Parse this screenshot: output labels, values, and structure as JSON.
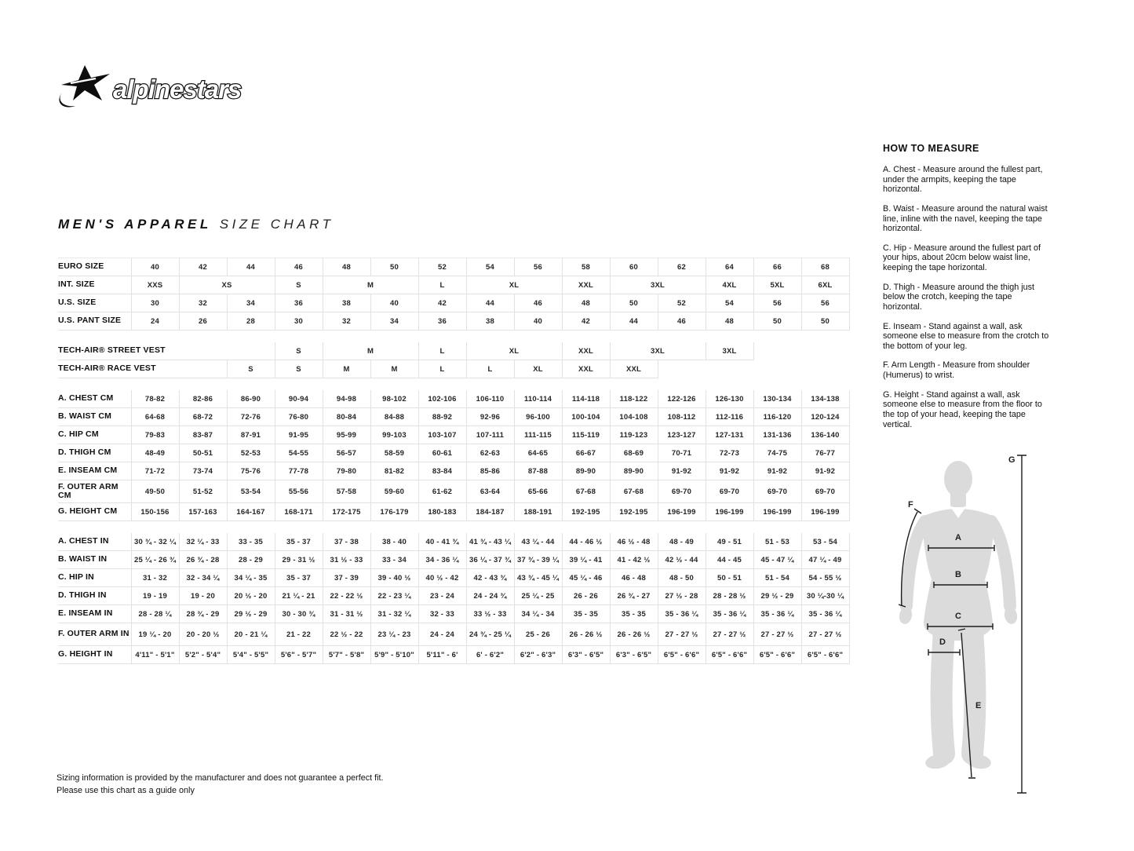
{
  "brand": {
    "name": "alpinestars"
  },
  "title": {
    "main": "MEN'S APPAREL",
    "sub": "SIZE CHART"
  },
  "size_table": {
    "groups": [
      {
        "rows": [
          {
            "label": "EURO SIZE",
            "cells": [
              "40",
              "42",
              "44",
              "46",
              "48",
              "50",
              "52",
              "54",
              "56",
              "58",
              "60",
              "62",
              "64",
              "66",
              "68"
            ]
          },
          {
            "label": "INT. SIZE",
            "cells": [
              "XXS",
              {
                "t": "XS",
                "s": 2
              },
              "S",
              {
                "t": "M",
                "s": 2
              },
              "L",
              {
                "t": "XL",
                "s": 2
              },
              "XXL",
              {
                "t": "3XL",
                "s": 2
              },
              "4XL",
              "5XL",
              "6XL"
            ]
          },
          {
            "label": "U.S. SIZE",
            "cells": [
              "30",
              "32",
              "34",
              "36",
              "38",
              "40",
              "42",
              "44",
              "46",
              "48",
              "50",
              "52",
              "54",
              "56",
              "56"
            ]
          },
          {
            "label": "U.S. PANT SIZE",
            "cells": [
              "24",
              "26",
              "28",
              "30",
              "32",
              "34",
              "36",
              "38",
              "40",
              "42",
              "44",
              "46",
              "48",
              "50",
              "50"
            ]
          }
        ]
      },
      {
        "rows": [
          {
            "label": "TECH-AIR® STREET VEST",
            "label_span": 4,
            "cells": [
              "S",
              {
                "t": "M",
                "s": 2
              },
              "L",
              {
                "t": "XL",
                "s": 2
              },
              "XXL",
              {
                "t": "3XL",
                "s": 2
              },
              "3XL",
              {
                "t": "",
                "s": 2
              }
            ]
          },
          {
            "label": "TECH-AIR® RACE VEST",
            "label_span": 3,
            "cells": [
              "S",
              "S",
              "M",
              "M",
              "L",
              "L",
              "XL",
              "XXL",
              "XXL",
              {
                "t": "",
                "s": 4
              }
            ]
          }
        ]
      },
      {
        "rows": [
          {
            "label": "A. CHEST CM",
            "cells": [
              "78-82",
              "82-86",
              "86-90",
              "90-94",
              "94-98",
              "98-102",
              "102-106",
              "106-110",
              "110-114",
              "114-118",
              "118-122",
              "122-126",
              "126-130",
              "130-134",
              "134-138"
            ]
          },
          {
            "label": "B. WAIST CM",
            "cells": [
              "64-68",
              "68-72",
              "72-76",
              "76-80",
              "80-84",
              "84-88",
              "88-92",
              "92-96",
              "96-100",
              "100-104",
              "104-108",
              "108-112",
              "112-116",
              "116-120",
              "120-124"
            ]
          },
          {
            "label": "C. HIP CM",
            "cells": [
              "79-83",
              "83-87",
              "87-91",
              "91-95",
              "95-99",
              "99-103",
              "103-107",
              "107-111",
              "111-115",
              "115-119",
              "119-123",
              "123-127",
              "127-131",
              "131-136",
              "136-140"
            ]
          },
          {
            "label": "D. THIGH CM",
            "cells": [
              "48-49",
              "50-51",
              "52-53",
              "54-55",
              "56-57",
              "58-59",
              "60-61",
              "62-63",
              "64-65",
              "66-67",
              "68-69",
              "70-71",
              "72-73",
              "74-75",
              "76-77"
            ]
          },
          {
            "label": "E. INSEAM CM",
            "cells": [
              "71-72",
              "73-74",
              "75-76",
              "77-78",
              "79-80",
              "81-82",
              "83-84",
              "85-86",
              "87-88",
              "89-90",
              "89-90",
              "91-92",
              "91-92",
              "91-92",
              "91-92"
            ]
          },
          {
            "label": "F. OUTER ARM CM",
            "tall": true,
            "cells": [
              "49-50",
              "51-52",
              "53-54",
              "55-56",
              "57-58",
              "59-60",
              "61-62",
              "63-64",
              "65-66",
              "67-68",
              "67-68",
              "69-70",
              "69-70",
              "69-70",
              "69-70"
            ]
          },
          {
            "label": "G. HEIGHT CM",
            "cells": [
              "150-156",
              "157-163",
              "164-167",
              "168-171",
              "172-175",
              "176-179",
              "180-183",
              "184-187",
              "188-191",
              "192-195",
              "192-195",
              "196-199",
              "196-199",
              "196-199",
              "196-199"
            ]
          }
        ]
      },
      {
        "rows": [
          {
            "label": "A. CHEST IN",
            "cells": [
              "30 ¾ - 32 ¼",
              "32 ¼ - 33",
              "33 - 35",
              "35 - 37",
              "37 - 38",
              "38 - 40",
              "40 - 41 ¾",
              "41 ¾ - 43 ¼",
              "43 ¼ - 44",
              "44 - 46 ½",
              "46 ½ - 48",
              "48 - 49",
              "49 - 51",
              "51 - 53",
              "53 - 54"
            ]
          },
          {
            "label": "B. WAIST IN",
            "cells": [
              "25 ¼ - 26 ¾",
              "26 ¾ - 28",
              "28 - 29",
              "29 - 31 ½",
              "31 ½ - 33",
              "33 - 34",
              "34 - 36 ¼",
              "36 ¼ - 37 ¾",
              "37 ¾ - 39 ¼",
              "39 ¼ - 41",
              "41 - 42 ½",
              "42 ½ - 44",
              "44 - 45",
              "45 - 47 ¼",
              "47 ¼ - 49"
            ]
          },
          {
            "label": "C. HIP IN",
            "cells": [
              "31 - 32",
              "32 - 34 ¼",
              "34 ¼ - 35",
              "35 - 37",
              "37 - 39",
              "39 - 40 ½",
              "40 ½ - 42",
              "42 - 43 ¾",
              "43 ¾ - 45 ¼",
              "45 ¼ - 46",
              "46 - 48",
              "48 - 50",
              "50 - 51",
              "51 - 54",
              "54 - 55 ½"
            ]
          },
          {
            "label": "D. THIGH IN",
            "cells": [
              "19 - 19",
              "19 - 20",
              "20 ½ - 20",
              "21 ¼ - 21",
              "22 - 22 ½",
              "22 - 23 ¼",
              "23 - 24",
              "24 - 24 ¾",
              "25 ¼ - 25",
              "26 - 26",
              "26 ¾ - 27",
              "27 ½ - 28",
              "28 - 28 ½",
              "29 ½ - 29",
              "30 ¼-30 ¼"
            ]
          },
          {
            "label": "E. INSEAM IN",
            "cells": [
              "28 - 28 ¼",
              "28 ¾ - 29",
              "29 ½ - 29",
              "30 - 30 ¾",
              "31 - 31 ½",
              "31 - 32 ¼",
              "32 - 33",
              "33 ½ - 33",
              "34 ¼ - 34",
              "35 - 35",
              "35 - 35",
              "35 - 36 ¼",
              "35 - 36 ¼",
              "35 - 36 ¼",
              "35 - 36 ¼"
            ]
          },
          {
            "label": "F. OUTER ARM IN",
            "tall": true,
            "cells": [
              "19 ¼ - 20",
              "20 - 20 ½",
              "20 - 21 ¼",
              "21 - 22",
              "22 ½ - 22",
              "23 ¼ - 23",
              "24 - 24",
              "24 ¾ - 25 ¼",
              "25 - 26",
              "26 - 26 ½",
              "26 - 26 ½",
              "27 - 27 ½",
              "27 - 27 ½",
              "27 - 27 ½",
              "27 - 27 ½"
            ]
          },
          {
            "label": "G. HEIGHT IN",
            "cells": [
              "4'11\" - 5'1\"",
              "5'2\" - 5'4\"",
              "5'4\" - 5'5\"",
              "5'6\" - 5'7\"",
              "5'7\" - 5'8\"",
              "5'9\" - 5'10\"",
              "5'11\" - 6'",
              "6' - 6'2\"",
              "6'2\" - 6'3\"",
              "6'3\" - 6'5\"",
              "6'3\" - 6'5\"",
              "6'5\" - 6'6\"",
              "6'5\" - 6'6\"",
              "6'5\" - 6'6\"",
              "6'5\" - 6'6\""
            ]
          }
        ]
      }
    ]
  },
  "how_to_measure": {
    "heading": "HOW TO MEASURE",
    "items": [
      "A. Chest - Measure around the fullest part, under the armpits, keeping the tape horizontal.",
      "B. Waist - Measure around the natural waist line, inline with the navel, keeping the tape horizontal.",
      "C. Hip - Measure around the fullest part of your hips, about 20cm below waist line, keeping the tape horizontal.",
      "D. Thigh - Measure around the thigh just below the crotch, keeping the tape horizontal.",
      "E. Inseam - Stand against a wall, ask someone else to measure from the crotch to the bottom of your leg.",
      "F. Arm Length - Measure from shoulder (Humerus) to wrist.",
      "G. Height - Stand against a wall, ask someone else to measure from the floor to the top of your head, keeping the tape vertical."
    ]
  },
  "figure": {
    "labels": {
      "a": "A",
      "b": "B",
      "c": "C",
      "d": "D",
      "e": "E",
      "f": "F",
      "g": "G"
    }
  },
  "footer": {
    "line1": "Sizing information is provided by the manufacturer and does not guarantee a perfect fit.",
    "line2": "Please use this chart as a guide only"
  }
}
